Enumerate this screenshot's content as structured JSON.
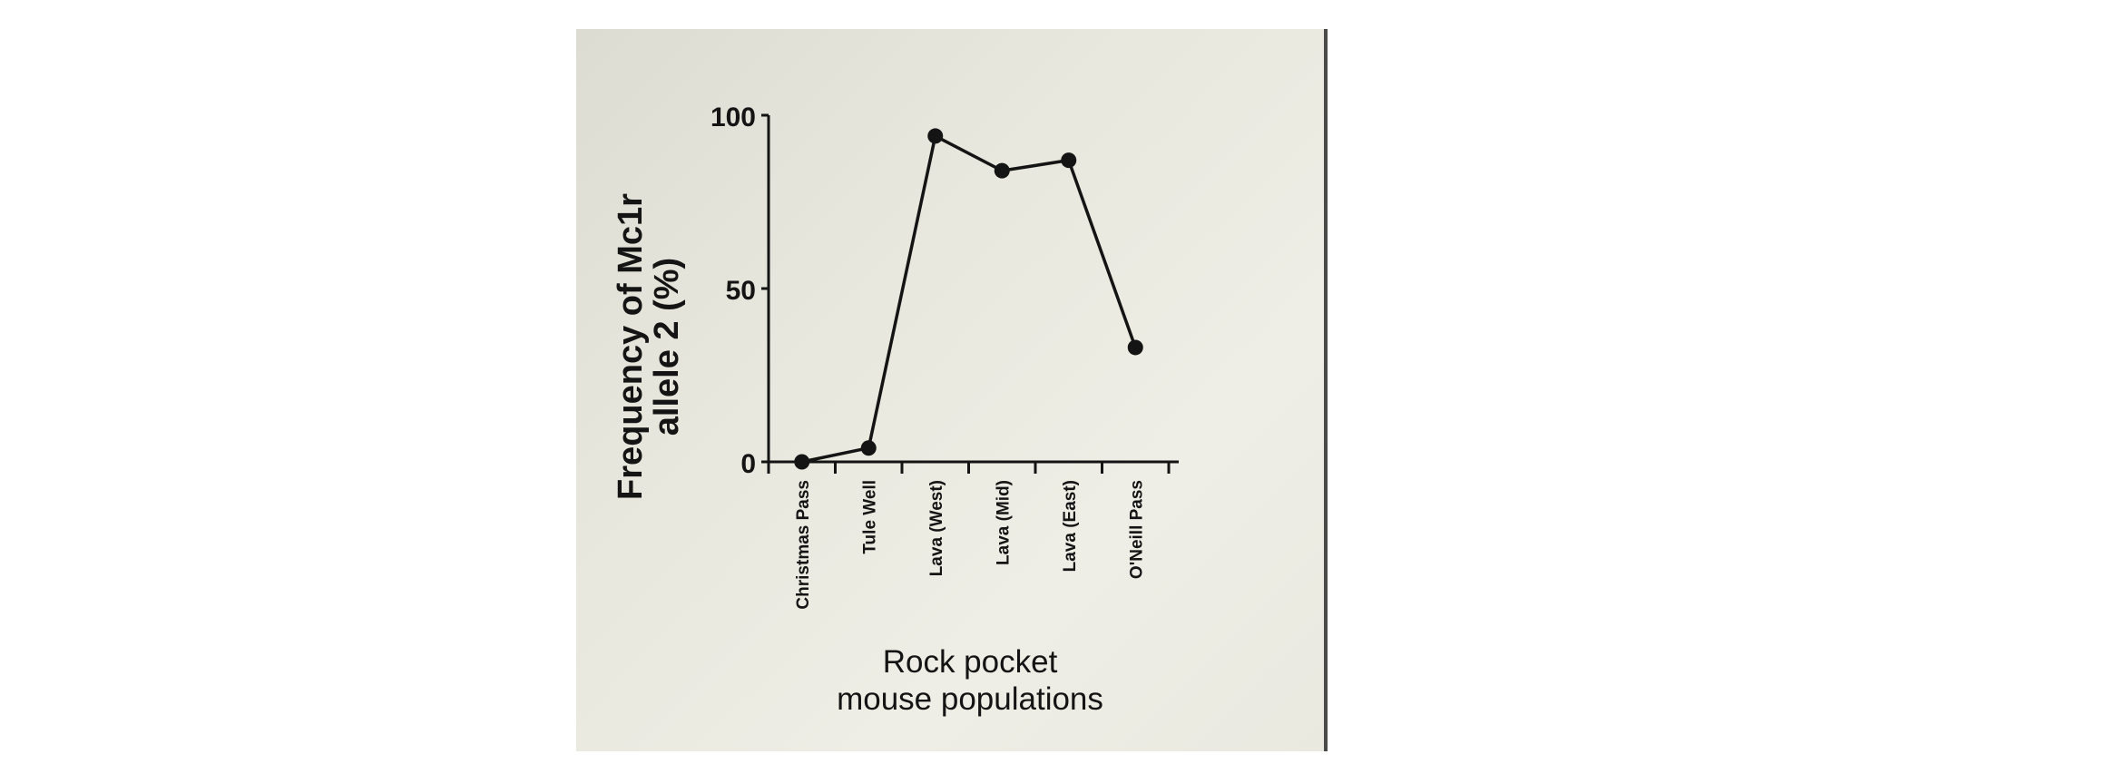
{
  "chart_data": {
    "type": "line",
    "categories": [
      "Christmas Pass",
      "Tule Well",
      "Lava (West)",
      "Lava (Mid)",
      "Lava (East)",
      "O'Neill Pass"
    ],
    "values": [
      0,
      4,
      94,
      84,
      87,
      33
    ],
    "ylabel_line1": "Frequency of Mc1r",
    "ylabel_line2": "allele 2 (%)",
    "xlabel_line1": "Rock pocket",
    "xlabel_line2": "mouse populations",
    "ylim": [
      0,
      100
    ],
    "yticks": [
      0,
      50,
      100
    ],
    "grid": false,
    "legend": "none",
    "colors": {
      "line": "#141414",
      "marker": "#141414",
      "axis": "#141414",
      "background": "#e6e6dc"
    }
  }
}
